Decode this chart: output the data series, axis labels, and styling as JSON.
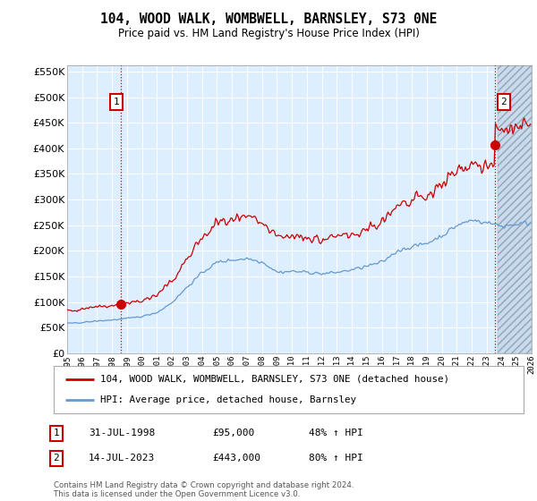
{
  "title": "104, WOOD WALK, WOMBWELL, BARNSLEY, S73 0NE",
  "subtitle": "Price paid vs. HM Land Registry's House Price Index (HPI)",
  "legend_line1": "104, WOOD WALK, WOMBWELL, BARNSLEY, S73 0NE (detached house)",
  "legend_line2": "HPI: Average price, detached house, Barnsley",
  "sale1_date": "31-JUL-1998",
  "sale1_price": "£95,000",
  "sale1_hpi": "48% ↑ HPI",
  "sale1_year": 1998.58,
  "sale1_value": 95000,
  "sale2_date": "14-JUL-2023",
  "sale2_price": "£443,000",
  "sale2_hpi": "80% ↑ HPI",
  "sale2_year": 2023.54,
  "sale2_value": 443000,
  "red_line_color": "#cc0000",
  "blue_line_color": "#6699cc",
  "plot_bg_color": "#ddeeff",
  "grid_color": "#ffffff",
  "ylim": [
    0,
    562500
  ],
  "xlim_start": 1995,
  "xlim_end": 2026,
  "hatch_start": 2023.75,
  "footnote": "Contains HM Land Registry data © Crown copyright and database right 2024.\nThis data is licensed under the Open Government Licence v3.0."
}
